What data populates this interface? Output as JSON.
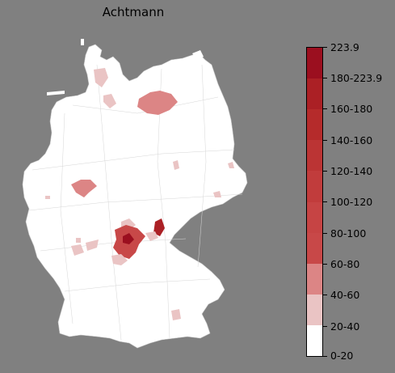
{
  "title": "Achtmann",
  "legend": {
    "max_label": "223.9",
    "ranges": [
      "0-20",
      "20-40",
      "40-60",
      "60-80",
      "80-100",
      "100-120",
      "120-140",
      "140-160",
      "160-180",
      "180-223.9"
    ],
    "colors": [
      "#ffffff",
      "#eac4c4",
      "#dc8585",
      "#c84848",
      "#c64444",
      "#c13c3c",
      "#bb3434",
      "#b52b2b",
      "#ab2025",
      "#9b0f1f"
    ]
  },
  "map": {
    "background": "#808080",
    "land_color": "#ffffff",
    "border_color": "#c8c8c8"
  }
}
